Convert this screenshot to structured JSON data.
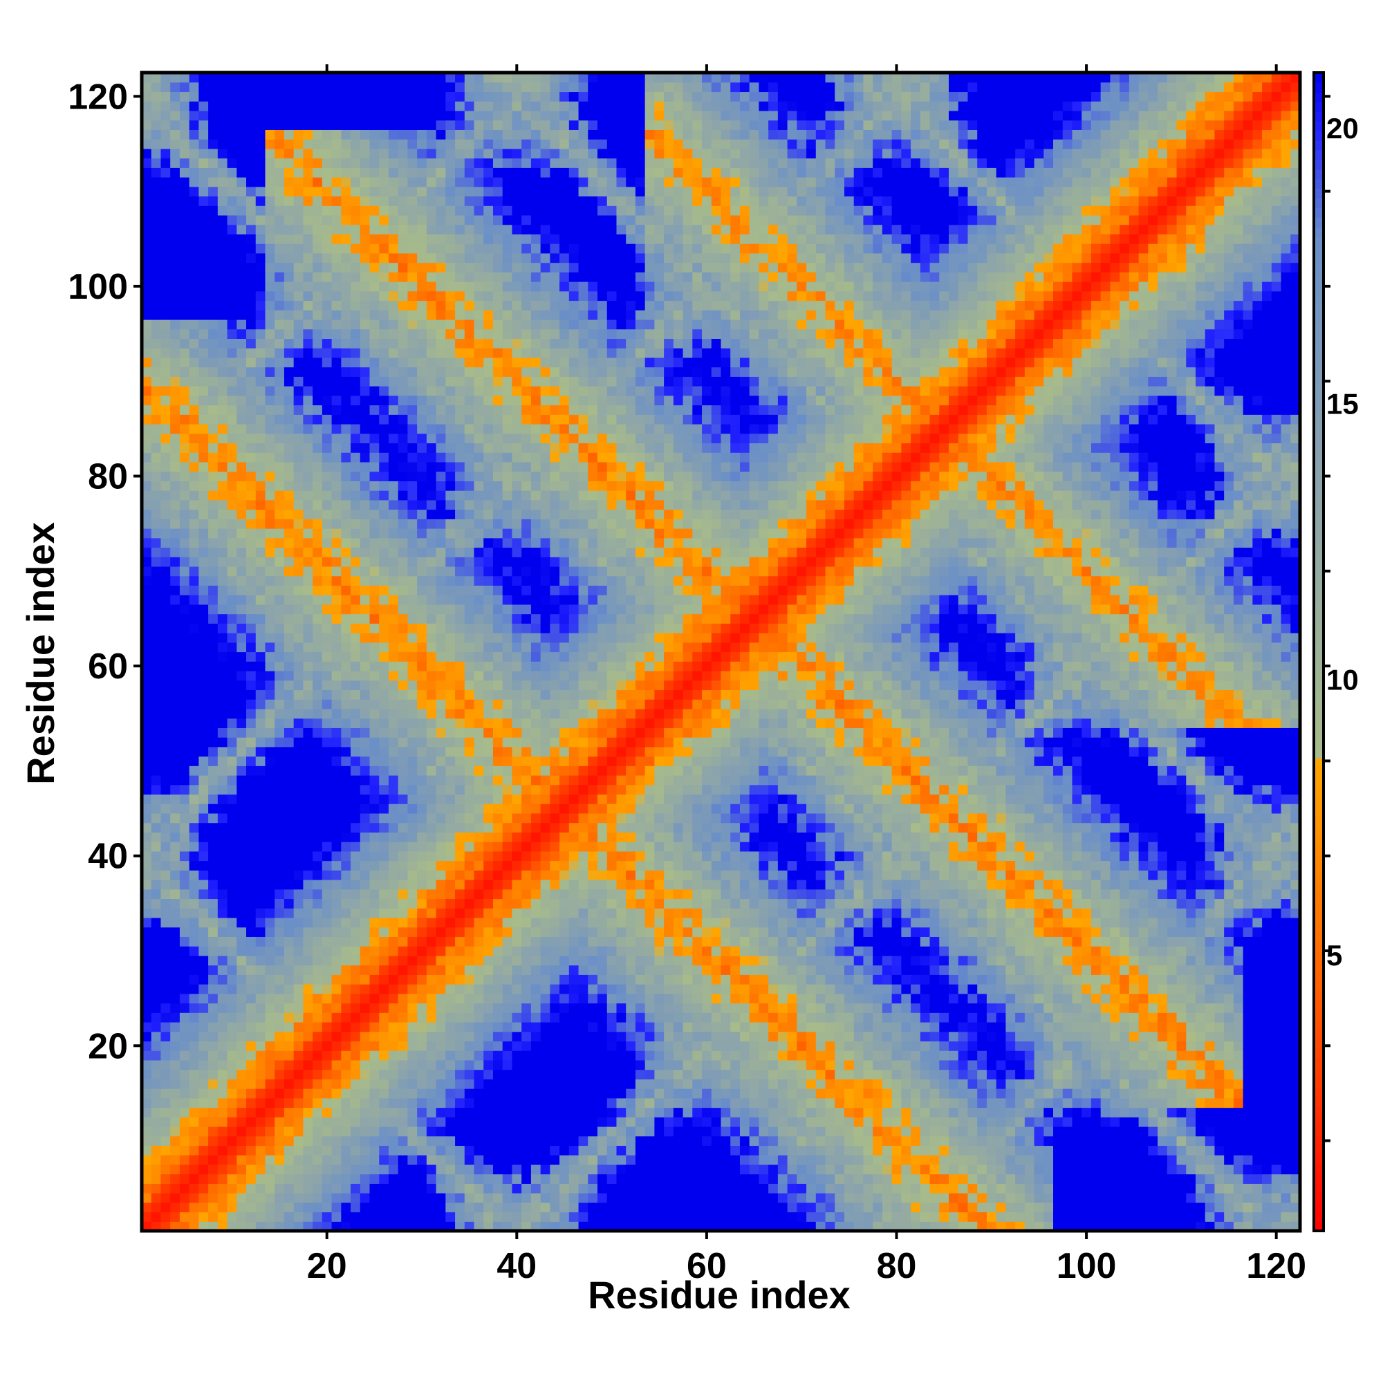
{
  "chart_data": {
    "type": "heatmap",
    "title": "",
    "xlabel": "Residue index",
    "ylabel": "Residue index",
    "xlim": [
      1,
      122
    ],
    "ylim": [
      1,
      122
    ],
    "x_ticks": [
      20,
      40,
      60,
      80,
      100,
      120
    ],
    "y_ticks": [
      20,
      40,
      60,
      80,
      100,
      120
    ],
    "grid": false,
    "colorbar": {
      "ticks": [
        5,
        10,
        15,
        20
      ],
      "range": [
        0,
        21
      ],
      "colors": [
        {
          "value": 0,
          "color": "#ff0000"
        },
        {
          "value": 5,
          "color": "#ff6a00"
        },
        {
          "value": 8.5,
          "color": "#ffa500"
        },
        {
          "value": 8.6,
          "color": "#a8bb8a"
        },
        {
          "value": 13,
          "color": "#8fa6a8"
        },
        {
          "value": 18,
          "color": "#6a8fc8"
        },
        {
          "value": 20,
          "color": "#2222ff"
        },
        {
          "value": 21,
          "color": "#0000ee"
        }
      ],
      "placement": "right"
    },
    "description_values": {
      "diagonal_distance": 1,
      "background_distance": 21,
      "contact_bands": [
        {
          "center": 90,
          "type": "antiparallel",
          "from": 1,
          "to": 90,
          "min_distance": 4.5
        },
        {
          "center": 130,
          "type": "antiparallel",
          "from": 20,
          "to": 110,
          "min_distance": 4.5
        },
        {
          "center": 170,
          "type": "antiparallel",
          "from": 60,
          "to": 121,
          "min_distance": 5
        }
      ]
    }
  }
}
